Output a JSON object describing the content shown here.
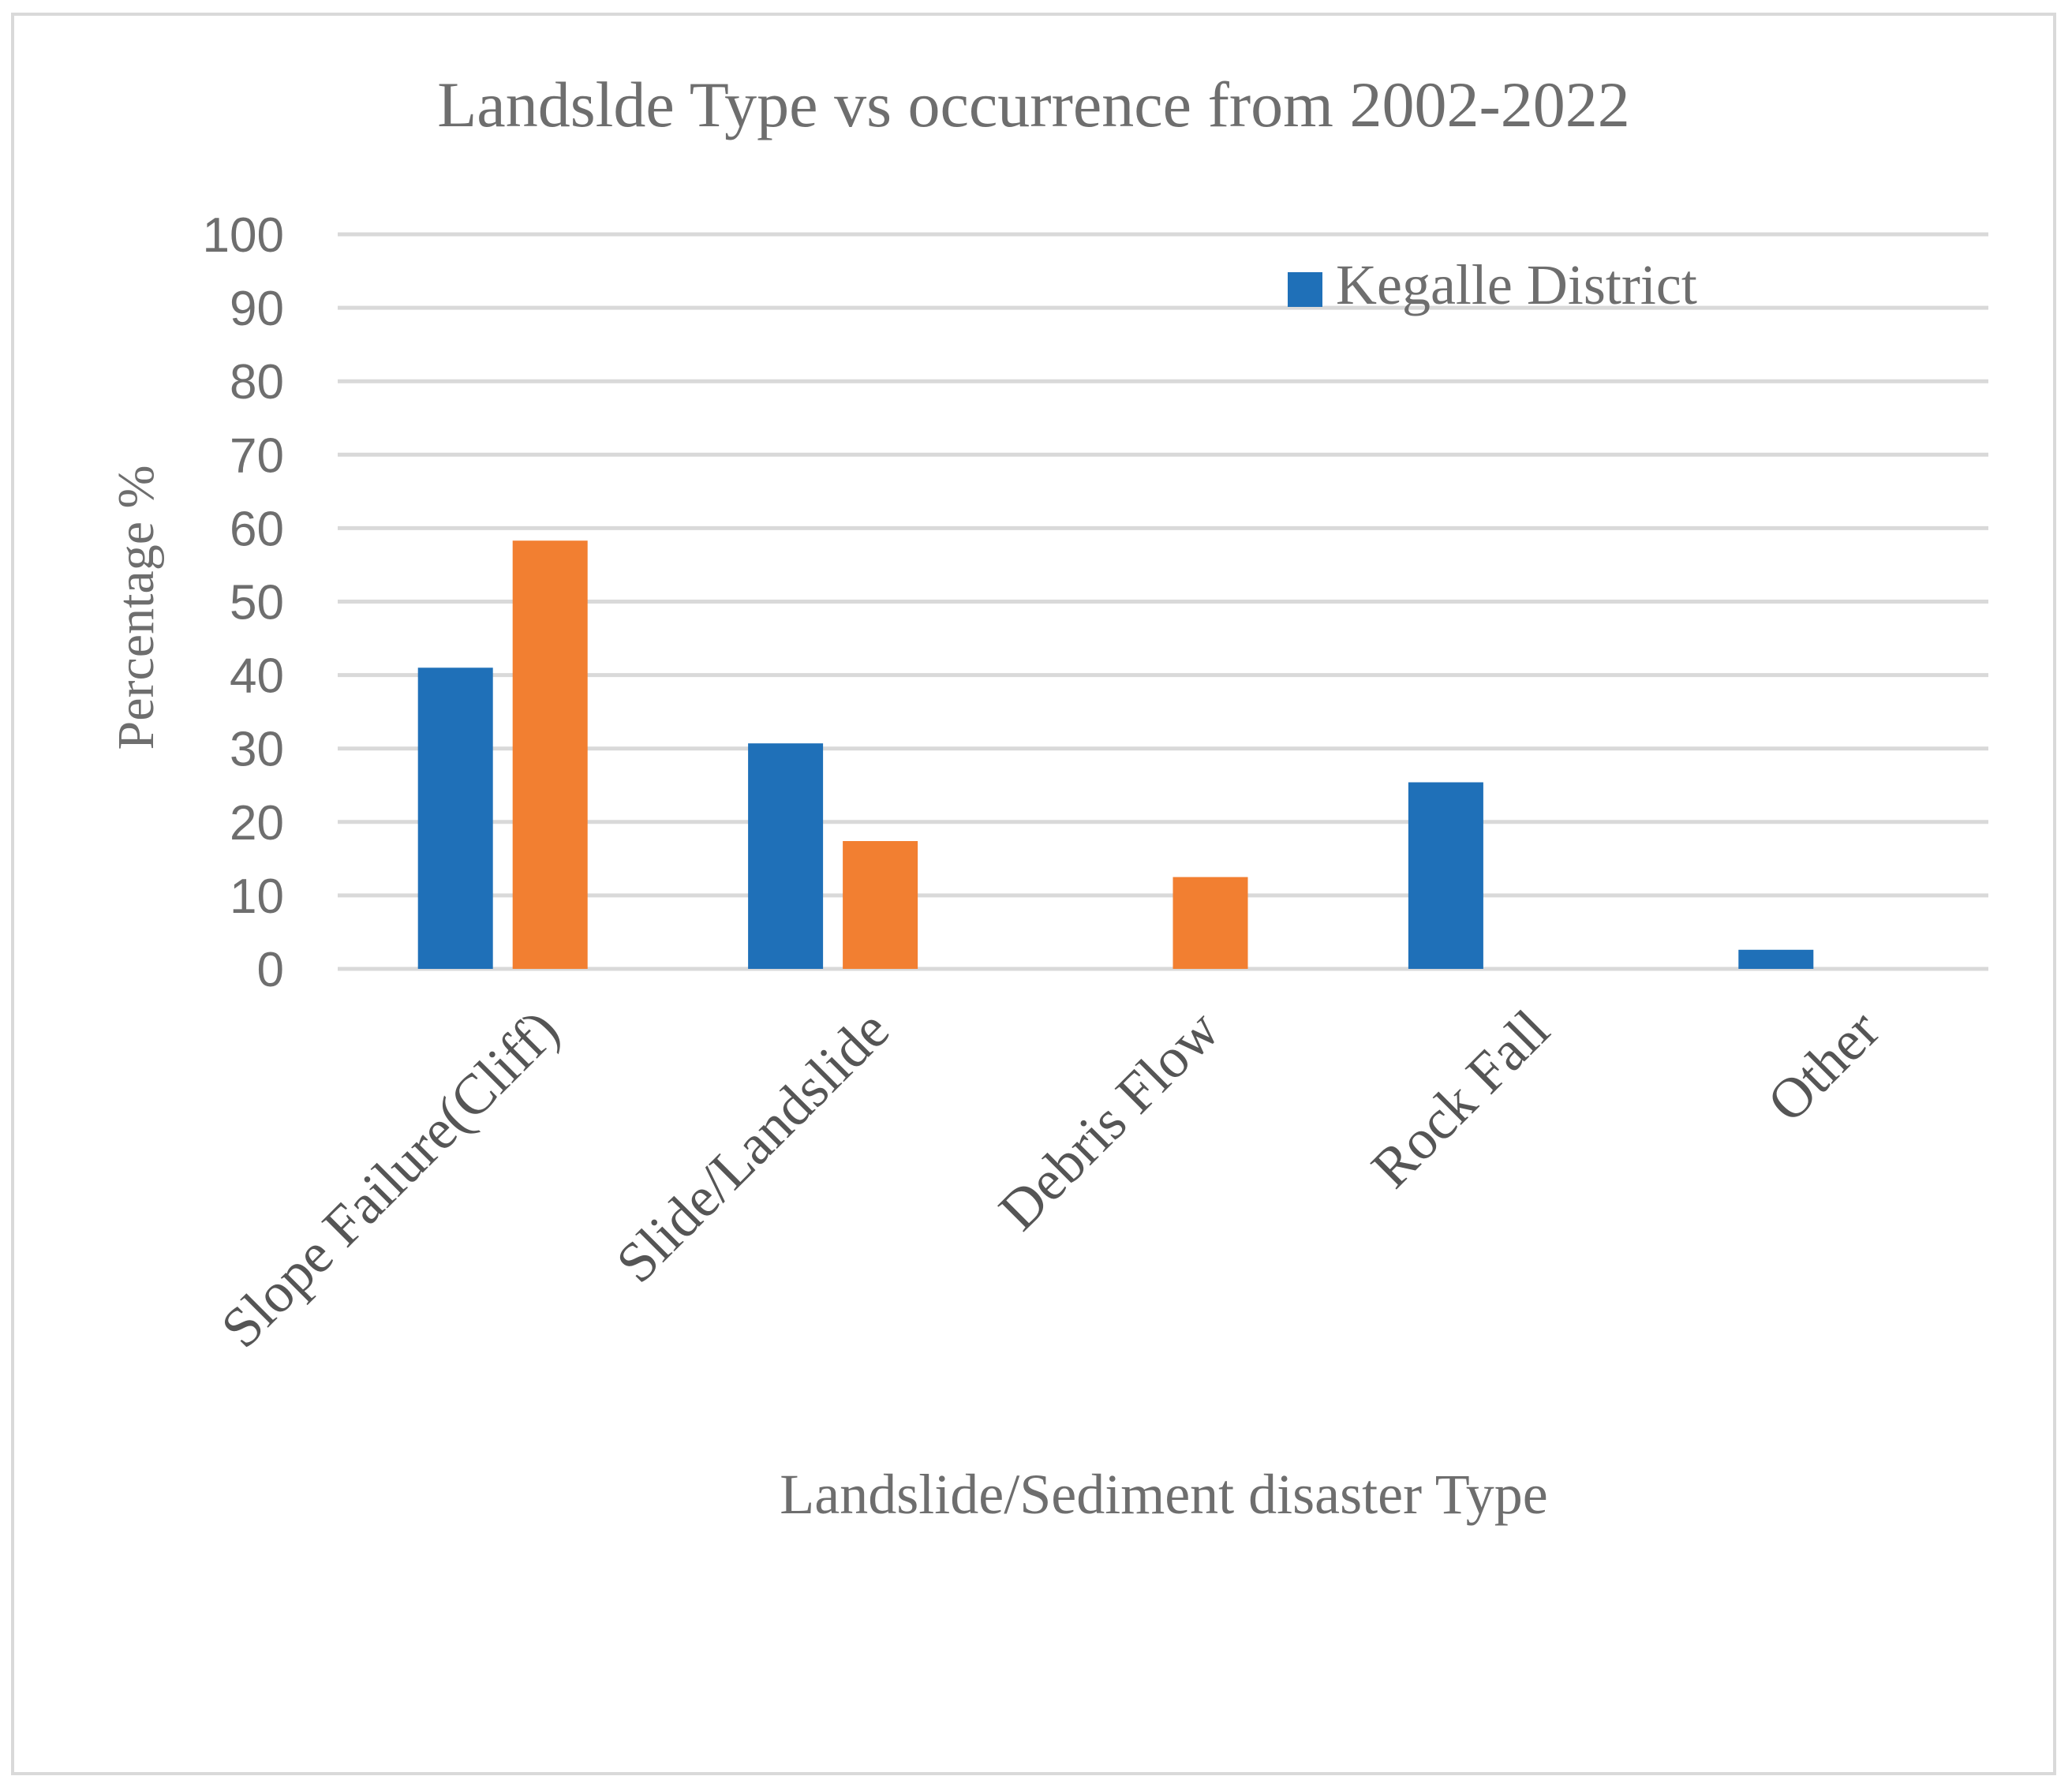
{
  "chart_data": {
    "type": "bar",
    "title": "Landslde Type vs occurrence from 2002-2022",
    "xlabel": "Landslide/Sediment disaster Type",
    "ylabel": "Percentage %",
    "categories": [
      "Slope Failure(Cliff)",
      "Slide/Landslide",
      "Debris Flow",
      "Rock Fall",
      "Other"
    ],
    "series": [
      {
        "name": "Kegalle District",
        "color": "#1f70b8",
        "values": [
          41,
          30.7,
          0,
          25.4,
          2.6
        ]
      },
      {
        "color": "#f27f31",
        "values": [
          58.3,
          17.4,
          12.5,
          0,
          0
        ]
      }
    ],
    "ylim": [
      0,
      100
    ],
    "yticks": [
      "0",
      "10",
      "20",
      "30",
      "40",
      "50",
      "60",
      "70",
      "80",
      "90",
      "100"
    ],
    "grid": true,
    "legend_position": "top-right"
  }
}
